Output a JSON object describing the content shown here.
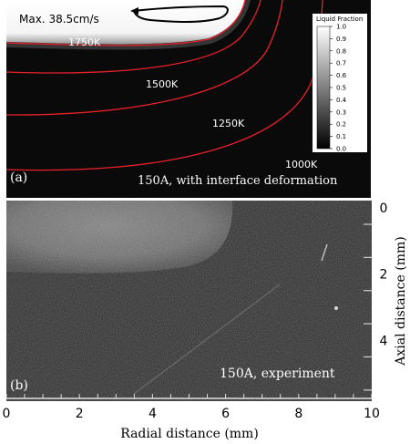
{
  "panel_a": {
    "label": "(a)",
    "caption": "150A, with interface deformation",
    "max_velocity": "Max. 38.5cm/s",
    "isotherms": [
      "1750K",
      "1500K",
      "1250K",
      "1000K"
    ],
    "legend": {
      "title": "Liquid Fraction",
      "values": [
        "1.0",
        "0.9",
        "0.8",
        "0.7",
        "0.6",
        "0.5",
        "0.4",
        "0.3",
        "0.2",
        "0.1",
        "0.0"
      ]
    },
    "colors": {
      "background": "#0a0a0a",
      "isotherm": "#e8202a",
      "melt": "#ffffff"
    }
  },
  "panel_b": {
    "label": "(b)",
    "caption": "150A, experiment"
  },
  "x_axis": {
    "label": "Radial distance (mm)",
    "ticks": [
      "0",
      "2",
      "4",
      "6",
      "8",
      "10"
    ],
    "range": [
      0,
      10
    ]
  },
  "y_axis": {
    "label": "Axial distance (mm)",
    "ticks": [
      "0",
      "2",
      "4"
    ],
    "range": [
      0,
      5.5
    ]
  }
}
